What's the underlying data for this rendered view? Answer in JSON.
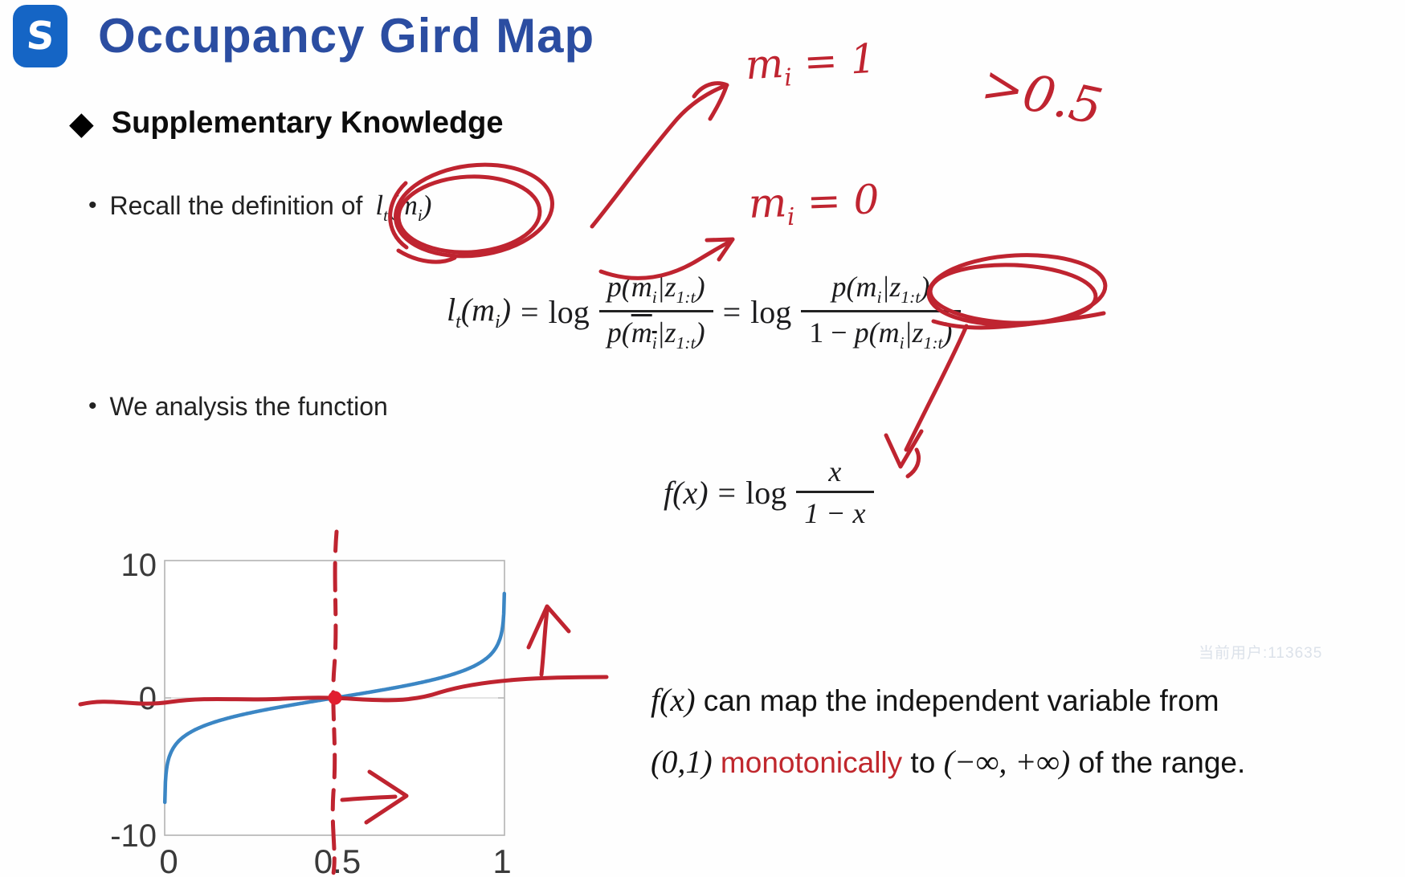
{
  "header": {
    "logo_letter": "S",
    "title": "Occupancy Gird Map"
  },
  "section_heading": "Supplementary Knowledge",
  "bullet_recall": {
    "text": "Recall the definition of",
    "math": {
      "l": "l",
      "sub_t": "t",
      "open": "(m",
      "sub_i": "i",
      "close": ")"
    }
  },
  "bullet_analysis": {
    "text": "We analysis the function"
  },
  "handwriting": {
    "mi1": {
      "base": "m",
      "sub": "i",
      "eq": " = 1"
    },
    "mi0": {
      "base": "m",
      "sub": "i",
      "eq": " = 0"
    },
    "threshold": ">0.5"
  },
  "formula_logodds": {
    "lhs": {
      "l": "l",
      "sub_t": "t",
      "open": "(m",
      "sub_i": "i",
      "close": ")"
    },
    "eq1": "=",
    "log1": "log",
    "frac1": {
      "num": {
        "head": "p(m",
        "sub_i": "i",
        "mid": "|z",
        "sub_t": "1:t",
        "tail": ")"
      },
      "den": {
        "head": "p(",
        "bar_m": "m",
        "bar_sub": "i",
        "mid": "|z",
        "sub_t": "1:t",
        "tail": ")"
      }
    },
    "eq2": "=",
    "log2": "log",
    "frac2": {
      "num": {
        "head": "p(m",
        "sub_i": "i",
        "mid": "|z",
        "sub_t": "1:t",
        "tail": ")"
      },
      "den": {
        "lead": "1 − ",
        "head": "p(m",
        "sub_i": "i",
        "mid": "|z",
        "sub_t": "1:t",
        "tail": ")"
      }
    }
  },
  "formula_fx": {
    "f": "f",
    "args": "(x)",
    "eq": "=",
    "log": "log",
    "num": "x",
    "den": "1 − x"
  },
  "caption": {
    "fx": "f(x)",
    "line1": " can map the independent variable from",
    "interval": "(0,1)",
    "highlight": "monotonically",
    "to": " to ",
    "range": "(−∞, +∞)",
    "tail": " of the range."
  },
  "watermark": "当前用户:113635",
  "colors": {
    "title_blue": "#2b4da1",
    "logo_blue": "#1565c5",
    "pen_red": "#bf2430",
    "dot_red": "#e11f2f",
    "highlight_red": "#c0272d",
    "curve_blue": "#3b86c4"
  },
  "chart_data": {
    "type": "line",
    "title": "",
    "xlabel": "",
    "ylabel": "",
    "function": "f(x) = log(x/(1-x))",
    "x_range": [
      0.0005,
      0.9995
    ],
    "xlim": [
      0,
      1
    ],
    "ylim": [
      -10,
      10
    ],
    "x_ticks": [
      0,
      0.5,
      1
    ],
    "y_ticks": [
      -10,
      0,
      10
    ],
    "x_tick_labels": [
      "0",
      "0.5",
      "1"
    ],
    "y_tick_labels": [
      "10",
      "0",
      "-10"
    ],
    "grid": "light horizontal line at y=0",
    "legend": "none",
    "curve_color": "#3b86c4",
    "annotations": [
      {
        "type": "vline-dashed-hand",
        "x": 0.5,
        "color": "#bf2430"
      },
      {
        "type": "point",
        "x": 0.5,
        "y": 0,
        "color": "#e11f2f"
      },
      {
        "type": "hline-hand",
        "y": 0,
        "color": "#bf2430"
      },
      {
        "type": "arrow-up-hand",
        "near": "right of plot, x≈1, meaning f(x)→+∞"
      },
      {
        "type": "arrow-right-hand",
        "near": "below center, x>0.5 region"
      }
    ]
  }
}
